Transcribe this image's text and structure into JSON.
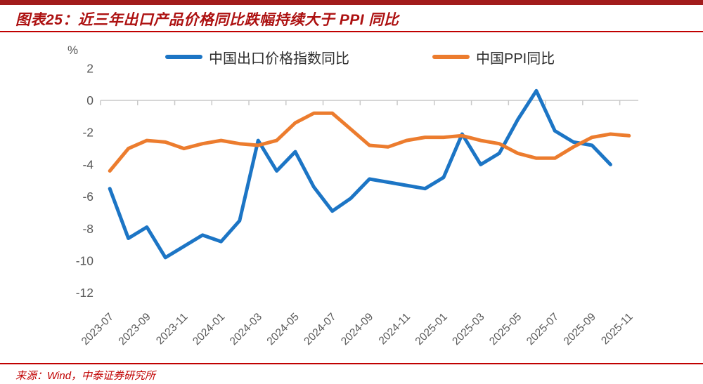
{
  "header": {
    "figure_label_and_title": "图表25：近三年出口产品价格同比跌幅持续大于 PPI 同比"
  },
  "footer": {
    "source_note": "来源：Wind，中泰证券研究所"
  },
  "colors": {
    "top_bar_red": "#a21c1c",
    "rule_red": "#c00000",
    "title_red": "#ad1111",
    "axis_gray": "#c9c9c9",
    "tick_label_gray": "#595959",
    "export_line_blue": "#1c75c5",
    "ppi_line_orange": "#ec7c2e"
  },
  "chart_data": {
    "type": "line",
    "title": "图表25：近三年出口产品价格同比跌幅持续大于 PPI 同比",
    "unit_label": "%",
    "grid": "off",
    "legend_position": "top",
    "ylim": [
      -12,
      2
    ],
    "y_ticks": [
      2,
      0,
      -2,
      -4,
      -6,
      -8,
      -10,
      -12
    ],
    "x_label_step": 2,
    "x": [
      "2023-07",
      "2023-08",
      "2023-09",
      "2023-10",
      "2023-11",
      "2023-12",
      "2024-01",
      "2024-02",
      "2024-03",
      "2024-04",
      "2024-05",
      "2024-06",
      "2024-07",
      "2024-08",
      "2024-09",
      "2024-10",
      "2024-11",
      "2024-12",
      "2025-01",
      "2025-02",
      "2025-03",
      "2025-04",
      "2025-05",
      "2025-06",
      "2025-07",
      "2025-08",
      "2025-09",
      "2025-10",
      "2025-11"
    ],
    "x_tick_labels_visible": [
      "2023-07",
      "2023-09",
      "2023-11",
      "2024-01",
      "2024-03",
      "2024-05",
      "2024-07",
      "2024-09",
      "2024-11",
      "2025-01",
      "2025-03",
      "2025-05",
      "2025-07",
      "2025-09",
      "2025-11"
    ],
    "series": [
      {
        "name": "中国出口价格指数同比",
        "color": "#1c75c5",
        "values": [
          -5.5,
          -8.6,
          -7.9,
          -9.8,
          -9.1,
          -8.4,
          -8.8,
          -7.5,
          -2.5,
          -4.4,
          -3.2,
          -5.4,
          -6.9,
          -6.1,
          -4.9,
          -5.1,
          -5.3,
          -5.5,
          -4.8,
          -2.1,
          -4.0,
          -3.3,
          -1.2,
          0.6,
          -1.9,
          -2.6,
          -2.8,
          -4.0,
          null
        ]
      },
      {
        "name": "中国PPI同比",
        "color": "#ec7c2e",
        "values": [
          -4.4,
          -3.0,
          -2.5,
          -2.6,
          -3.0,
          -2.7,
          -2.5,
          -2.7,
          -2.8,
          -2.5,
          -1.4,
          -0.8,
          -0.8,
          -1.8,
          -2.8,
          -2.9,
          -2.5,
          -2.3,
          -2.3,
          -2.2,
          -2.5,
          -2.7,
          -3.3,
          -3.6,
          -3.6,
          -2.9,
          -2.3,
          -2.1,
          -2.2
        ]
      }
    ]
  }
}
